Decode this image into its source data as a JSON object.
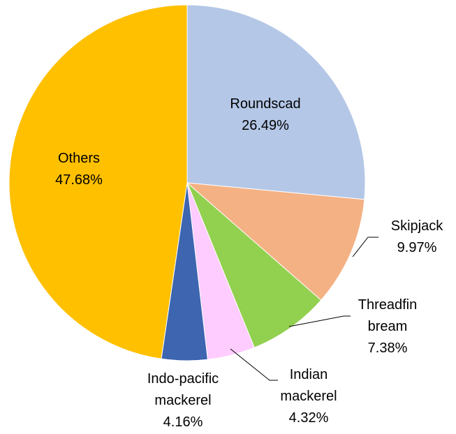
{
  "chart_data": {
    "type": "pie",
    "categories": [
      "Roundscad",
      "Skipjack",
      "Threadfin bream",
      "Indian mackerel",
      "Indo-pacific mackerel",
      "Others"
    ],
    "values": [
      26.49,
      9.97,
      7.38,
      4.32,
      4.16,
      47.68
    ],
    "value_labels": [
      "26.49%",
      "9.97%",
      "7.38%",
      "4.32%",
      "4.16%",
      "47.68%"
    ],
    "colors": [
      "#b4c7e7",
      "#f4b183",
      "#92d050",
      "#ffccff",
      "#3d65b0",
      "#ffc000"
    ]
  }
}
